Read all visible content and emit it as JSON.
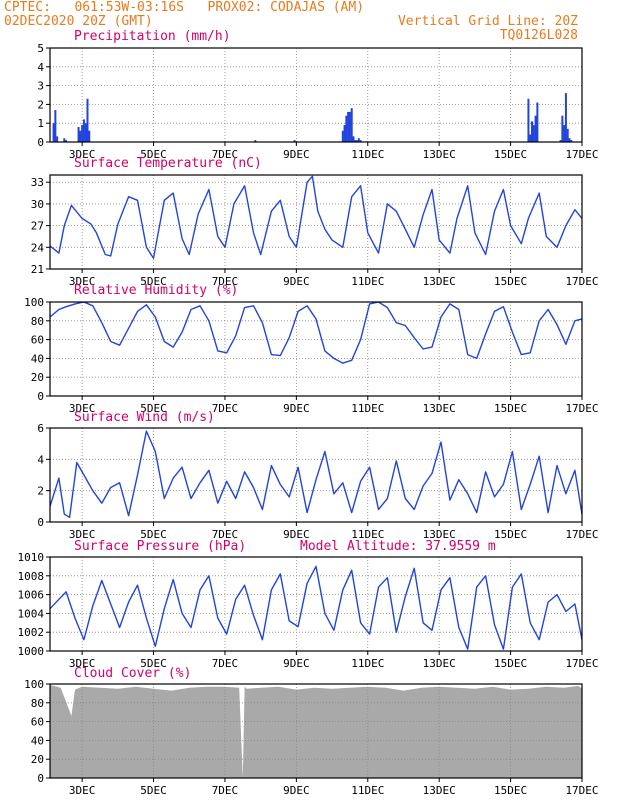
{
  "header": {
    "line1_left": "CPTEC:   061:53W-03:16S   PROX02: CODAJAS (AM)",
    "line2_left": "02DEC2020 20Z (GMT)",
    "line2_right": "Vertical Grid Line: 20Z",
    "line3_right": "TQ0126L028"
  },
  "colors": {
    "header": "#e87b1c",
    "title": "#d4006a",
    "line": "#2244dd",
    "cloud": "#a9a9a9",
    "grid": "#888888",
    "axis": "#000000"
  },
  "x_axis": {
    "tick_labels": [
      "3DEC",
      "5DEC",
      "7DEC",
      "9DEC",
      "11DEC",
      "13DEC",
      "15DEC",
      "17DEC"
    ],
    "tick_days": [
      3,
      5,
      7,
      9,
      11,
      13,
      15,
      17
    ],
    "range_days": [
      2.1,
      17.0
    ]
  },
  "chart_data": [
    {
      "id": "precip",
      "type": "bar",
      "title": "Precipitation (mm/h)",
      "ylim": [
        0,
        5
      ],
      "yticks": [
        0,
        1,
        2,
        3,
        4,
        5
      ],
      "x": [
        2.2,
        2.25,
        2.3,
        2.5,
        2.55,
        2.9,
        2.95,
        3.0,
        3.05,
        3.1,
        3.15,
        3.2,
        7.85,
        8.95,
        10.3,
        10.35,
        10.4,
        10.45,
        10.5,
        10.55,
        10.6,
        10.65,
        10.7,
        10.75,
        10.8,
        15.5,
        15.55,
        15.6,
        15.65,
        15.7,
        15.75,
        16.4,
        16.45,
        16.5,
        16.55,
        16.6,
        16.65,
        16.7
      ],
      "values": [
        1.0,
        1.7,
        0.3,
        0.2,
        0.1,
        0.8,
        0.6,
        0.9,
        1.2,
        1.0,
        2.3,
        0.6,
        0.1,
        0.1,
        0.6,
        0.9,
        1.4,
        1.6,
        1.6,
        1.8,
        0.3,
        0.1,
        0.1,
        0.2,
        0.1,
        2.3,
        0.4,
        1.1,
        0.9,
        1.4,
        2.1,
        0.1,
        1.4,
        0.9,
        2.6,
        0.7,
        0.2,
        0.1
      ]
    },
    {
      "id": "temp",
      "type": "line",
      "title": "Surface Temperature (nC)",
      "ylim": [
        21,
        34
      ],
      "yticks": [
        21,
        24,
        27,
        30,
        33
      ],
      "ytick_labels": [
        "21",
        "24",
        "27",
        "30",
        "33"
      ],
      "x": [
        2.1,
        2.35,
        2.5,
        2.7,
        3.0,
        3.25,
        3.4,
        3.65,
        3.8,
        4.0,
        4.3,
        4.55,
        4.8,
        5.0,
        5.3,
        5.55,
        5.8,
        6.0,
        6.25,
        6.55,
        6.8,
        7.0,
        7.25,
        7.55,
        7.8,
        8.0,
        8.3,
        8.55,
        8.8,
        9.0,
        9.3,
        9.45,
        9.6,
        9.8,
        10.0,
        10.3,
        10.55,
        10.8,
        11.0,
        11.3,
        11.55,
        11.8,
        12.0,
        12.3,
        12.55,
        12.8,
        13.0,
        13.3,
        13.5,
        13.8,
        14.0,
        14.3,
        14.55,
        14.8,
        15.0,
        15.3,
        15.5,
        15.8,
        16.0,
        16.3,
        16.55,
        16.8,
        17.0
      ],
      "values": [
        24.2,
        23.2,
        27.0,
        29.8,
        28.0,
        27.2,
        26.0,
        23.0,
        22.8,
        27.2,
        31.0,
        30.5,
        24.0,
        22.5,
        30.5,
        31.5,
        25.2,
        23.0,
        28.6,
        32.0,
        25.5,
        24.0,
        30.0,
        32.5,
        26.0,
        23.0,
        29.0,
        30.5,
        25.5,
        24.0,
        33.0,
        33.8,
        29.0,
        26.5,
        25.0,
        24.0,
        31.0,
        32.5,
        26.0,
        23.2,
        30.0,
        29.0,
        27.0,
        24.0,
        28.5,
        32.0,
        25.0,
        23.2,
        28.0,
        32.5,
        26.0,
        23.0,
        29.0,
        32.0,
        27.0,
        24.5,
        28.0,
        31.5,
        25.5,
        24.0,
        27.0,
        29.2,
        28.0
      ]
    },
    {
      "id": "rh",
      "type": "line",
      "title": "Relative Humidity (%)",
      "ylim": [
        0,
        100
      ],
      "yticks": [
        0,
        20,
        40,
        60,
        80,
        100
      ],
      "x": [
        2.1,
        2.35,
        2.55,
        2.8,
        3.05,
        3.3,
        3.55,
        3.8,
        4.05,
        4.3,
        4.55,
        4.8,
        5.05,
        5.3,
        5.55,
        5.8,
        6.05,
        6.3,
        6.55,
        6.8,
        7.05,
        7.3,
        7.55,
        7.8,
        8.05,
        8.3,
        8.55,
        8.8,
        9.05,
        9.3,
        9.55,
        9.8,
        10.05,
        10.3,
        10.55,
        10.8,
        11.05,
        11.3,
        11.55,
        11.8,
        12.05,
        12.3,
        12.55,
        12.8,
        13.05,
        13.3,
        13.55,
        13.8,
        14.05,
        14.3,
        14.55,
        14.8,
        15.05,
        15.3,
        15.55,
        15.8,
        16.05,
        16.3,
        16.55,
        16.8,
        17.0
      ],
      "values": [
        84,
        92,
        95,
        98,
        100,
        96,
        78,
        58,
        54,
        72,
        90,
        97,
        84,
        58,
        52,
        68,
        92,
        96,
        80,
        48,
        46,
        64,
        94,
        96,
        78,
        44,
        43,
        62,
        90,
        96,
        82,
        48,
        40,
        35,
        38,
        60,
        98,
        100,
        94,
        78,
        75,
        62,
        50,
        52,
        84,
        98,
        92,
        44,
        40,
        66,
        90,
        95,
        68,
        44,
        46,
        80,
        92,
        76,
        55,
        80,
        82
      ]
    },
    {
      "id": "wind",
      "type": "line",
      "title": "Surface Wind (m/s)",
      "ylim": [
        0,
        6
      ],
      "yticks": [
        0,
        2,
        4,
        6
      ],
      "x": [
        2.1,
        2.35,
        2.5,
        2.65,
        2.85,
        3.1,
        3.3,
        3.55,
        3.8,
        4.05,
        4.3,
        4.55,
        4.8,
        5.05,
        5.3,
        5.55,
        5.8,
        6.05,
        6.3,
        6.55,
        6.8,
        7.05,
        7.3,
        7.55,
        7.8,
        8.05,
        8.3,
        8.55,
        8.8,
        9.05,
        9.3,
        9.55,
        9.8,
        10.05,
        10.3,
        10.55,
        10.8,
        11.05,
        11.3,
        11.55,
        11.8,
        12.05,
        12.3,
        12.55,
        12.8,
        13.05,
        13.3,
        13.55,
        13.8,
        14.05,
        14.3,
        14.55,
        14.8,
        15.05,
        15.3,
        15.55,
        15.8,
        16.05,
        16.3,
        16.55,
        16.8,
        17.0
      ],
      "values": [
        1.0,
        2.8,
        0.5,
        0.3,
        3.8,
        2.8,
        2.0,
        1.2,
        2.2,
        2.5,
        0.4,
        3.0,
        5.8,
        4.5,
        1.5,
        2.8,
        3.5,
        1.5,
        2.5,
        3.3,
        1.2,
        2.6,
        1.5,
        3.2,
        2.2,
        0.8,
        3.6,
        2.4,
        1.6,
        3.5,
        0.6,
        2.7,
        4.5,
        1.8,
        2.5,
        0.6,
        2.6,
        3.5,
        0.8,
        1.5,
        3.9,
        1.5,
        0.8,
        2.3,
        3.1,
        5.1,
        1.4,
        2.7,
        1.8,
        0.6,
        3.2,
        1.6,
        2.4,
        4.5,
        0.8,
        2.4,
        4.2,
        0.6,
        3.6,
        1.8,
        3.3,
        0.5
      ]
    },
    {
      "id": "pressure",
      "type": "line",
      "title": "Surface Pressure (hPa)",
      "annotation": "Model Altitude: 37.9559 m",
      "ylim": [
        1000,
        1010
      ],
      "yticks": [
        1000,
        1002,
        1004,
        1006,
        1008,
        1010
      ],
      "x": [
        2.1,
        2.35,
        2.55,
        2.8,
        3.05,
        3.3,
        3.55,
        3.8,
        4.05,
        4.3,
        4.55,
        4.8,
        5.05,
        5.3,
        5.55,
        5.8,
        6.05,
        6.3,
        6.55,
        6.8,
        7.05,
        7.3,
        7.55,
        7.8,
        8.05,
        8.3,
        8.55,
        8.8,
        9.05,
        9.3,
        9.55,
        9.8,
        10.05,
        10.3,
        10.55,
        10.8,
        11.05,
        11.3,
        11.55,
        11.8,
        12.05,
        12.3,
        12.55,
        12.8,
        13.05,
        13.3,
        13.55,
        13.8,
        14.05,
        14.3,
        14.55,
        14.8,
        15.05,
        15.3,
        15.55,
        15.8,
        16.05,
        16.3,
        16.55,
        16.8,
        17.0
      ],
      "values": [
        1004.5,
        1005.5,
        1006.3,
        1003.5,
        1001.2,
        1004.8,
        1007.5,
        1005.0,
        1002.5,
        1005.2,
        1007.0,
        1003.5,
        1000.5,
        1004.5,
        1007.6,
        1004.0,
        1002.5,
        1006.5,
        1008.0,
        1003.5,
        1001.8,
        1005.5,
        1007.0,
        1003.8,
        1001.2,
        1006.5,
        1008.2,
        1003.2,
        1002.6,
        1007.2,
        1009.0,
        1004.0,
        1002.2,
        1006.5,
        1008.6,
        1003.0,
        1001.8,
        1006.8,
        1007.8,
        1002.0,
        1005.8,
        1008.8,
        1003.0,
        1002.2,
        1006.5,
        1007.8,
        1002.5,
        1000.2,
        1006.8,
        1008.0,
        1002.8,
        1000.2,
        1006.8,
        1008.2,
        1003.0,
        1001.2,
        1005.2,
        1006.0,
        1004.2,
        1005.0,
        1001.2
      ]
    },
    {
      "id": "cloud",
      "type": "area",
      "title": "Cloud Cover (%)",
      "ylim": [
        0,
        100
      ],
      "yticks": [
        0,
        20,
        40,
        60,
        80,
        100
      ],
      "x": [
        2.1,
        2.4,
        2.7,
        2.75,
        2.8,
        3.0,
        3.5,
        4.0,
        4.5,
        5.0,
        5.5,
        6.0,
        6.5,
        7.0,
        7.4,
        7.5,
        7.55,
        7.6,
        8.0,
        8.5,
        9.0,
        9.5,
        10.0,
        10.5,
        11.0,
        11.5,
        12.0,
        12.5,
        13.0,
        13.5,
        14.0,
        14.5,
        15.0,
        15.5,
        16.0,
        16.5,
        16.9,
        17.0
      ],
      "values": [
        99,
        96,
        66,
        80,
        94,
        97,
        96,
        95,
        97,
        95,
        93,
        96,
        97,
        97,
        96,
        0,
        97,
        95,
        96,
        97,
        94,
        96,
        95,
        96,
        97,
        96,
        93,
        96,
        97,
        96,
        95,
        97,
        94,
        95,
        97,
        96,
        98,
        95
      ]
    }
  ]
}
